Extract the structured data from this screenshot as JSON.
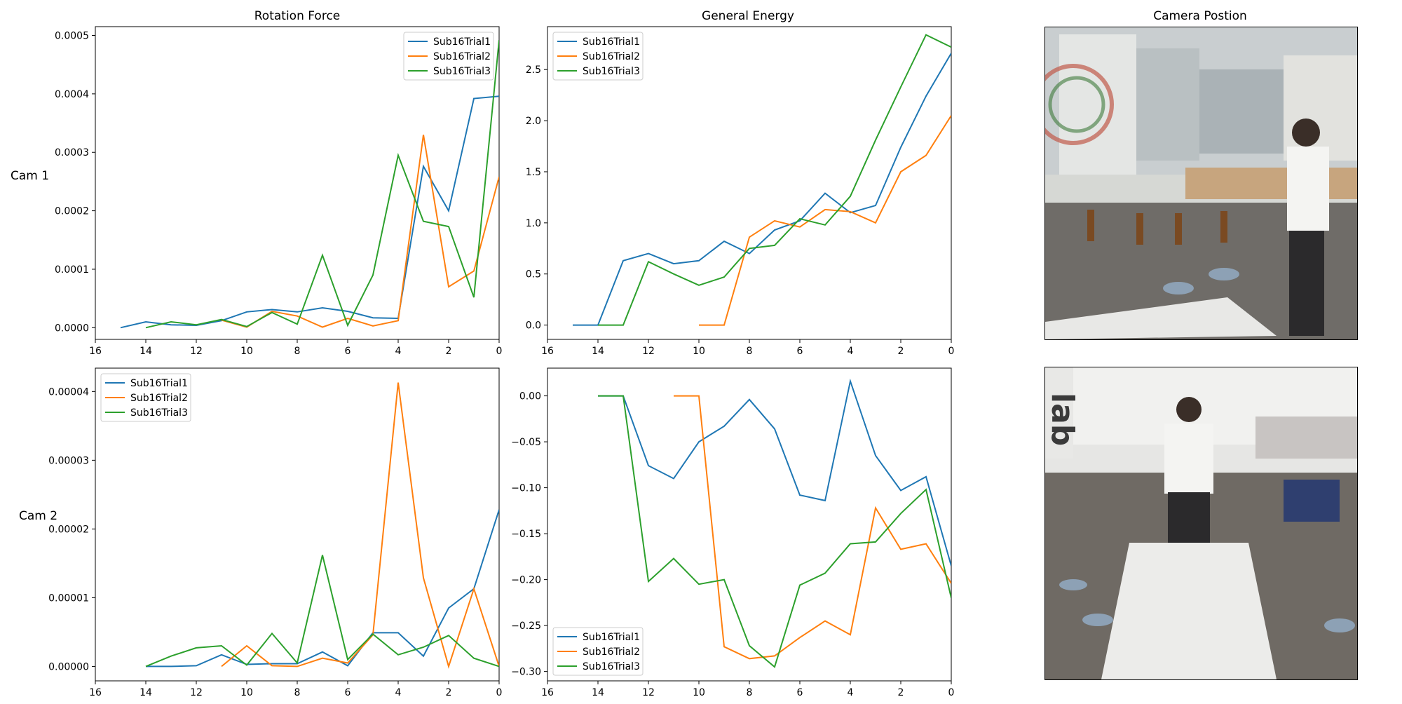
{
  "columns": {
    "rotation_title": "Rotation Force",
    "energy_title": "General Energy",
    "camera_title": "Camera Postion"
  },
  "rows": {
    "cam1_label": "Cam 1",
    "cam2_label": "Cam 2"
  },
  "colors": {
    "Sub16Trial1": "#1f77b4",
    "Sub16Trial2": "#ff7f0e",
    "Sub16Trial3": "#2ca02c"
  },
  "chart_data": [
    {
      "id": "rot_cam1",
      "type": "line",
      "title": "Rotation Force",
      "row": "Cam 1",
      "xlim": [
        16,
        0
      ],
      "ylim": [
        -2e-05,
        0.000515
      ],
      "xticks": [
        16,
        14,
        12,
        10,
        8,
        6,
        4,
        2,
        0
      ],
      "yticks": [
        0,
        0.0001,
        0.0002,
        0.0003,
        0.0004,
        0.0005
      ],
      "ytick_labels": [
        "0.0000",
        "0.0001",
        "0.0002",
        "0.0003",
        "0.0004",
        "0.0005"
      ],
      "legend": "top-right",
      "series": [
        {
          "name": "Sub16Trial1",
          "x": [
            15,
            14,
            13,
            12,
            11,
            10,
            9,
            8,
            7,
            6,
            5,
            4,
            3,
            2,
            1,
            0
          ],
          "y": [
            0,
            1e-05,
            5e-06,
            4e-06,
            1.2e-05,
            2.7e-05,
            3.1e-05,
            2.7e-05,
            3.4e-05,
            2.8e-05,
            1.7e-05,
            1.6e-05,
            0.000276,
            0.0002,
            0.000392,
            0.000396
          ]
        },
        {
          "name": "Sub16Trial2",
          "x": [
            11,
            10,
            9,
            8,
            7,
            6,
            5,
            4,
            3,
            2,
            1,
            0
          ],
          "y": [
            1.3e-05,
            1e-06,
            2.8e-05,
            2e-05,
            1e-06,
            1.6e-05,
            3e-06,
            1.2e-05,
            0.00033,
            7e-05,
            9.7e-05,
            0.000258
          ]
        },
        {
          "name": "Sub16Trial3",
          "x": [
            14,
            13,
            12,
            11,
            10,
            9,
            8,
            7,
            6,
            5,
            4,
            3,
            2,
            1,
            0
          ],
          "y": [
            0,
            1e-05,
            5e-06,
            1.4e-05,
            2e-06,
            2.6e-05,
            6e-06,
            0.000124,
            4e-06,
            9e-05,
            0.000295,
            0.000182,
            0.000173,
            5.2e-05,
            0.000492
          ]
        }
      ]
    },
    {
      "id": "energy_cam1",
      "type": "line",
      "title": "General Energy",
      "row": "Cam 1",
      "xlim": [
        16,
        0
      ],
      "ylim": [
        -0.14,
        2.92
      ],
      "xticks": [
        16,
        14,
        12,
        10,
        8,
        6,
        4,
        2,
        0
      ],
      "yticks": [
        0,
        0.5,
        1,
        1.5,
        2,
        2.5
      ],
      "ytick_labels": [
        "0.0",
        "0.5",
        "1.0",
        "1.5",
        "2.0",
        "2.5"
      ],
      "legend": "top-left",
      "series": [
        {
          "name": "Sub16Trial1",
          "x": [
            15,
            14,
            13,
            12,
            11,
            10,
            9,
            8,
            7,
            6,
            5,
            4,
            3,
            2,
            1,
            0
          ],
          "y": [
            0,
            0,
            0.63,
            0.7,
            0.6,
            0.63,
            0.82,
            0.7,
            0.93,
            1.02,
            1.29,
            1.1,
            1.17,
            1.74,
            2.24,
            2.66
          ]
        },
        {
          "name": "Sub16Trial2",
          "x": [
            10,
            9,
            8,
            7,
            6,
            5,
            4,
            3,
            2,
            1,
            0
          ],
          "y": [
            0,
            0,
            0.86,
            1.02,
            0.96,
            1.13,
            1.11,
            1,
            1.5,
            1.66,
            2.05
          ]
        },
        {
          "name": "Sub16Trial3",
          "x": [
            14,
            13,
            12,
            11,
            10,
            9,
            8,
            7,
            6,
            5,
            4,
            3,
            2,
            1,
            0
          ],
          "y": [
            0,
            0,
            0.62,
            0.5,
            0.39,
            0.47,
            0.75,
            0.78,
            1.04,
            0.98,
            1.26,
            1.81,
            2.33,
            2.84,
            2.72
          ]
        }
      ]
    },
    {
      "id": "rot_cam2",
      "type": "line",
      "title": "",
      "row": "Cam 2",
      "xlim": [
        16,
        0
      ],
      "ylim": [
        -2.1e-06,
        4.34e-05
      ],
      "xticks": [
        16,
        14,
        12,
        10,
        8,
        6,
        4,
        2,
        0
      ],
      "yticks": [
        0,
        1e-05,
        2e-05,
        3e-05,
        4e-05
      ],
      "ytick_labels": [
        "0.00000",
        "0.00001",
        "0.00002",
        "0.00003",
        "0.00004"
      ],
      "legend": "top-left",
      "series": [
        {
          "name": "Sub16Trial1",
          "x": [
            14,
            13,
            12,
            11,
            10,
            9,
            8,
            7,
            6,
            5,
            4,
            3,
            2,
            1,
            0
          ],
          "y": [
            0,
            0,
            1e-07,
            1.7e-06,
            3e-07,
            4e-07,
            4e-07,
            2.1e-06,
            1e-07,
            4.9e-06,
            4.9e-06,
            1.5e-06,
            8.5e-06,
            1.13e-05,
            2.28e-05
          ]
        },
        {
          "name": "Sub16Trial2",
          "x": [
            11,
            10,
            9,
            8,
            7,
            6,
            5,
            4,
            3,
            2,
            1,
            0
          ],
          "y": [
            0,
            3e-06,
            1e-07,
            0,
            1.2e-06,
            5e-07,
            4.6e-06,
            4.13e-05,
            1.29e-05,
            0,
            1.13e-05,
            0
          ]
        },
        {
          "name": "Sub16Trial3",
          "x": [
            14,
            13,
            12,
            11,
            10,
            9,
            8,
            7,
            6,
            5,
            4,
            3,
            2,
            1,
            0
          ],
          "y": [
            0,
            1.5e-06,
            2.7e-06,
            3e-06,
            2e-07,
            4.8e-06,
            5e-07,
            1.62e-05,
            1e-06,
            4.7e-06,
            1.7e-06,
            2.8e-06,
            4.5e-06,
            1.2e-06,
            0
          ]
        }
      ]
    },
    {
      "id": "energy_cam2",
      "type": "line",
      "title": "",
      "row": "Cam 2",
      "xlim": [
        16,
        0
      ],
      "ylim": [
        -0.3102,
        0.0302
      ],
      "xticks": [
        16,
        14,
        12,
        10,
        8,
        6,
        4,
        2,
        0
      ],
      "yticks": [
        0,
        -0.05,
        -0.1,
        -0.15,
        -0.2,
        -0.25,
        -0.3
      ],
      "ytick_labels": [
        "0.00",
        "−0.05",
        "−0.10",
        "−0.15",
        "−0.20",
        "−0.25",
        "−0.30"
      ],
      "legend": "bottom-left",
      "series": [
        {
          "name": "Sub16Trial1",
          "x": [
            14,
            13,
            12,
            11,
            10,
            9,
            8,
            7,
            6,
            5,
            4,
            3,
            2,
            1,
            0
          ],
          "y": [
            0,
            0,
            -0.076,
            -0.09,
            -0.05,
            -0.033,
            -0.004,
            -0.036,
            -0.108,
            -0.114,
            0.016,
            -0.065,
            -0.103,
            -0.088,
            -0.185
          ]
        },
        {
          "name": "Sub16Trial2",
          "x": [
            11,
            10,
            9,
            8,
            7,
            6,
            5,
            4,
            3,
            2,
            1,
            0
          ],
          "y": [
            0,
            0,
            -0.273,
            -0.286,
            -0.283,
            -0.263,
            -0.245,
            -0.26,
            -0.122,
            -0.167,
            -0.161,
            -0.204
          ]
        },
        {
          "name": "Sub16Trial3",
          "x": [
            14,
            13,
            12,
            11,
            10,
            9,
            8,
            7,
            6,
            5,
            4,
            3,
            2,
            1,
            0
          ],
          "y": [
            0,
            0,
            -0.202,
            -0.177,
            -0.205,
            -0.2,
            -0.272,
            -0.295,
            -0.206,
            -0.193,
            -0.161,
            -0.159,
            -0.128,
            -0.102,
            -0.22
          ]
        }
      ]
    }
  ]
}
